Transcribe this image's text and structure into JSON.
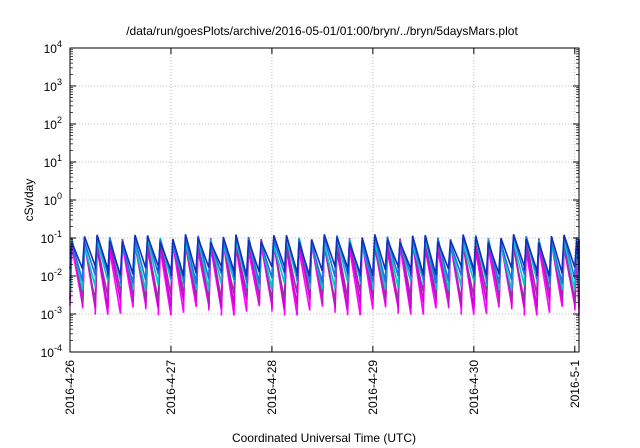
{
  "chart_data": {
    "type": "line",
    "title": "/data/run/goesPlots/archive/2016-05-01/01:00/bryn/../bryn/5daysMars.plot",
    "xlabel": "Coordinated Universal Time (UTC)",
    "ylabel": "cSv/day",
    "y_scale": "log",
    "ylim": [
      0.0001,
      10000
    ],
    "xlim": [
      "2016-04-26",
      "2016-05-01T01:00"
    ],
    "grid": true,
    "legend": "none",
    "y_ticks": [
      {
        "base": "10",
        "exp": "-4",
        "value": 0.0001
      },
      {
        "base": "10",
        "exp": "-3",
        "value": 0.001
      },
      {
        "base": "10",
        "exp": "-2",
        "value": 0.01
      },
      {
        "base": "10",
        "exp": "-1",
        "value": 0.1
      },
      {
        "base": "10",
        "exp": "0",
        "value": 1
      },
      {
        "base": "10",
        "exp": "1",
        "value": 10
      },
      {
        "base": "10",
        "exp": "2",
        "value": 100
      },
      {
        "base": "10",
        "exp": "3",
        "value": 1000
      },
      {
        "base": "10",
        "exp": "4",
        "value": 10000
      }
    ],
    "x_ticks": [
      {
        "label": "2016-4-26",
        "value": "2016-04-26"
      },
      {
        "label": "2016-4-27",
        "value": "2016-04-27"
      },
      {
        "label": "2016-4-28",
        "value": "2016-04-28"
      },
      {
        "label": "2016-4-29",
        "value": "2016-04-29"
      },
      {
        "label": "2016-4-30",
        "value": "2016-04-30"
      },
      {
        "label": "2016-5-1",
        "value": "2016-05-01"
      }
    ],
    "series_pattern": {
      "description": "sawtooth",
      "period_hours": 3,
      "series": [
        {
          "color": "#ff00ff",
          "peak": 0.06,
          "trough": 0.0013
        },
        {
          "color": "#d000d8",
          "peak": 0.075,
          "trough": 0.002
        },
        {
          "color": "#9a2fa6",
          "peak": 0.08,
          "trough": 0.003
        },
        {
          "color": "#00c8c8",
          "peak": 0.085,
          "trough": 0.006
        },
        {
          "color": "#1e6fe8",
          "peak": 0.095,
          "trough": 0.009
        },
        {
          "color": "#1030b8",
          "peak": 0.1,
          "trough": 0.014
        }
      ]
    }
  }
}
